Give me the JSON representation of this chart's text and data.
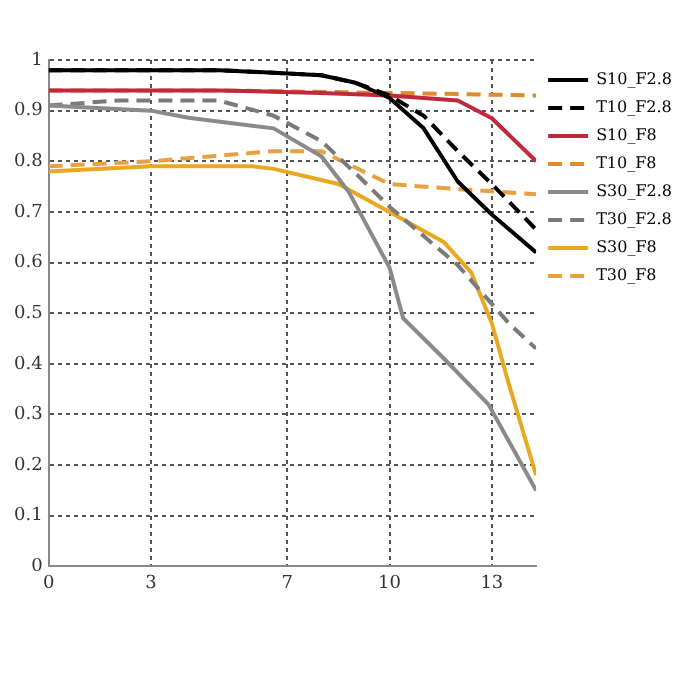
{
  "chart_data": {
    "type": "line",
    "xlim": [
      0,
      14.3
    ],
    "xticks": [
      0,
      3,
      7,
      10,
      13
    ],
    "ylim": [
      0,
      1
    ],
    "yticks": [
      0,
      0.1,
      0.2,
      0.3,
      0.4,
      0.5,
      0.6,
      0.7,
      0.8,
      0.9,
      1
    ],
    "grid": true,
    "legend": "top right",
    "marker": "none",
    "series": [
      {
        "name": "S10_F2.8",
        "color": "#000000",
        "line_style": "solid",
        "x": [
          0,
          5,
          8,
          9,
          10,
          11,
          12,
          13,
          14.3
        ],
        "values": [
          0.98,
          0.98,
          0.97,
          0.955,
          0.925,
          0.865,
          0.76,
          0.695,
          0.62
        ]
      },
      {
        "name": "T10_F2.8",
        "color": "#000000",
        "line_style": "dashed",
        "x": [
          0,
          5,
          8,
          9,
          10,
          11,
          12,
          13,
          14.3
        ],
        "values": [
          0.98,
          0.98,
          0.97,
          0.955,
          0.93,
          0.89,
          0.82,
          0.755,
          0.665
        ]
      },
      {
        "name": "S10_F8",
        "color": "#c0283c",
        "line_style": "solid",
        "x": [
          0,
          5,
          8,
          10,
          12,
          13,
          14.3
        ],
        "values": [
          0.94,
          0.94,
          0.935,
          0.93,
          0.92,
          0.885,
          0.8
        ]
      },
      {
        "name": "T10_F8",
        "color": "#e08a2e",
        "line_style": "dashed",
        "x": [
          0,
          5,
          10,
          14.3
        ],
        "values": [
          0.94,
          0.94,
          0.935,
          0.93
        ]
      },
      {
        "name": "S30_F2.8",
        "color": "#8a8a8a",
        "line_style": "solid",
        "x": [
          0,
          3,
          4.1,
          6.6,
          8,
          8.8,
          10,
          10.4,
          11.6,
          12.9,
          14.3
        ],
        "values": [
          0.91,
          0.9,
          0.886,
          0.865,
          0.81,
          0.74,
          0.59,
          0.49,
          0.41,
          0.32,
          0.15
        ]
      },
      {
        "name": "T30_F2.8",
        "color": "#7a7a7a",
        "line_style": "dashed",
        "x": [
          0,
          2,
          5,
          6.6,
          8,
          9.1,
          10,
          12,
          13.5,
          14.3
        ],
        "values": [
          0.91,
          0.92,
          0.92,
          0.89,
          0.84,
          0.77,
          0.71,
          0.595,
          0.48,
          0.43
        ]
      },
      {
        "name": "S30_F8",
        "color": "#e8a820",
        "line_style": "solid",
        "x": [
          0,
          3,
          6,
          6.6,
          8.5,
          10,
          11.6,
          12.4,
          13,
          13.5,
          14.3
        ],
        "values": [
          0.78,
          0.79,
          0.79,
          0.785,
          0.755,
          0.7,
          0.64,
          0.58,
          0.48,
          0.36,
          0.18
        ]
      },
      {
        "name": "T30_F8",
        "color": "#e8a040",
        "line_style": "dashed",
        "x": [
          0,
          3,
          6.6,
          8,
          10,
          12,
          14.3
        ],
        "values": [
          0.79,
          0.8,
          0.82,
          0.82,
          0.755,
          0.745,
          0.735
        ]
      }
    ]
  }
}
